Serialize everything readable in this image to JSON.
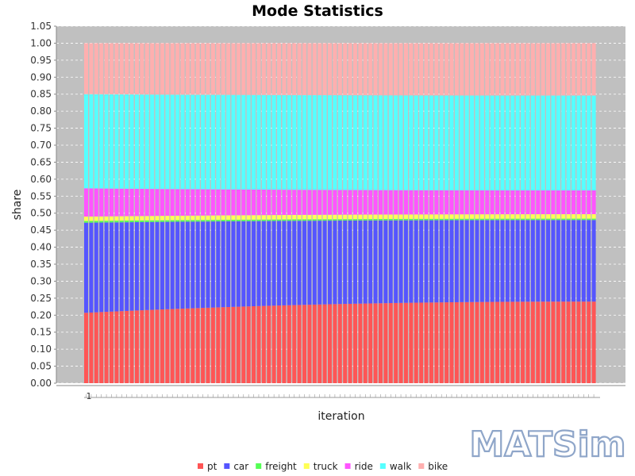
{
  "logo": {
    "text": "MATSim"
  },
  "chart_data": {
    "type": "bar",
    "stacked": true,
    "title": "Mode Statistics",
    "xlabel": "iteration",
    "ylabel": "share",
    "ylim": [
      0,
      1.05
    ],
    "yticks": [
      "0.00",
      "0.05",
      "0.10",
      "0.15",
      "0.20",
      "0.25",
      "0.30",
      "0.35",
      "0.40",
      "0.45",
      "0.50",
      "0.55",
      "0.60",
      "0.65",
      "0.70",
      "0.75",
      "0.80",
      "0.85",
      "0.90",
      "0.95",
      "1.00",
      "1.05"
    ],
    "x_first_tick_label": "1",
    "iterations": {
      "from": 0,
      "to": 100
    },
    "grid": true,
    "legend_position": "bottom",
    "series": [
      {
        "name": "pt",
        "color": "#ff5555",
        "start": 0.207,
        "end": 0.24
      },
      {
        "name": "car",
        "color": "#5555ff",
        "start": 0.265,
        "end": 0.24
      },
      {
        "name": "freight",
        "color": "#55ff55",
        "start": 0.005,
        "end": 0.004
      },
      {
        "name": "truck",
        "color": "#ffff55",
        "start": 0.013,
        "end": 0.013
      },
      {
        "name": "ride",
        "color": "#ff55ff",
        "start": 0.083,
        "end": 0.07
      },
      {
        "name": "walk",
        "color": "#55ffff",
        "start": 0.277,
        "end": 0.279
      },
      {
        "name": "bike",
        "color": "#ffafaf",
        "start": 0.15,
        "end": 0.154
      }
    ]
  }
}
